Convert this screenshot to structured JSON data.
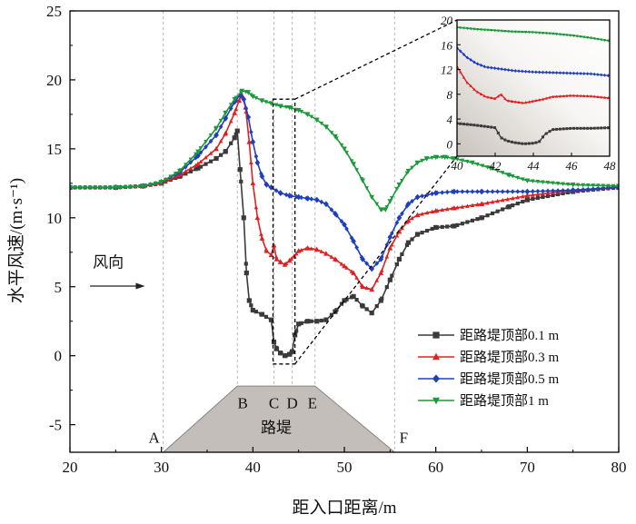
{
  "chart_data": {
    "type": "line",
    "xlabel": "距入口距离/m",
    "ylabel": "水平风速/(m·s⁻¹)",
    "xlim": [
      20,
      80
    ],
    "ylim": [
      -7,
      25
    ],
    "xticks": [
      "20",
      "30",
      "40",
      "50",
      "60",
      "70",
      "80"
    ],
    "yticks": [
      "-5",
      "0",
      "5",
      "10",
      "15",
      "20",
      "25"
    ],
    "grid": false,
    "legend_position": "bottom-right",
    "wind_direction_label": "风向",
    "embankment_label": "路堤",
    "reference_lines": [
      {
        "label": "A",
        "x": 30.2
      },
      {
        "label": "B",
        "x": 38.3
      },
      {
        "label": "C",
        "x": 42.3
      },
      {
        "label": "D",
        "x": 44.3
      },
      {
        "label": "E",
        "x": 46.8
      },
      {
        "label": "F",
        "x": 55.5
      }
    ],
    "series": [
      {
        "name": "距路堤顶部0.1 m",
        "color": "#3a3a3a",
        "marker": "square",
        "points": [
          [
            20,
            12.2
          ],
          [
            25,
            12.2
          ],
          [
            28,
            12.3
          ],
          [
            30,
            12.5
          ],
          [
            32,
            13.0
          ],
          [
            34,
            13.6
          ],
          [
            36,
            14.3
          ],
          [
            37,
            14.8
          ],
          [
            38,
            15.8
          ],
          [
            38.3,
            16.3
          ],
          [
            38.6,
            13.5
          ],
          [
            39,
            10.0
          ],
          [
            39.3,
            6.0
          ],
          [
            39.6,
            4.0
          ],
          [
            40,
            3.3
          ],
          [
            41,
            3.0
          ],
          [
            42,
            2.6
          ],
          [
            42.3,
            1.0
          ],
          [
            42.6,
            0.5
          ],
          [
            43,
            0.2
          ],
          [
            43.5,
            0.0
          ],
          [
            44,
            0.1
          ],
          [
            44.3,
            0.3
          ],
          [
            44.6,
            1.5
          ],
          [
            45,
            2.3
          ],
          [
            46,
            2.5
          ],
          [
            47,
            2.5
          ],
          [
            48,
            2.6
          ],
          [
            49,
            3.2
          ],
          [
            50,
            4.0
          ],
          [
            51,
            4.3
          ],
          [
            52,
            3.6
          ],
          [
            53,
            3.1
          ],
          [
            54,
            4.0
          ],
          [
            55,
            5.5
          ],
          [
            56,
            7.0
          ],
          [
            57,
            8.2
          ],
          [
            58,
            8.8
          ],
          [
            60,
            9.3
          ],
          [
            62,
            9.4
          ],
          [
            65,
            10.0
          ],
          [
            68,
            10.8
          ],
          [
            70,
            11.3
          ],
          [
            75,
            11.9
          ],
          [
            80,
            12.2
          ]
        ]
      },
      {
        "name": "距路堤顶部0.3 m",
        "color": "#e02020",
        "marker": "triangle",
        "points": [
          [
            20,
            12.2
          ],
          [
            25,
            12.2
          ],
          [
            28,
            12.3
          ],
          [
            30,
            12.5
          ],
          [
            32,
            13.1
          ],
          [
            34,
            13.9
          ],
          [
            36,
            15.0
          ],
          [
            37,
            16.1
          ],
          [
            38,
            17.6
          ],
          [
            38.5,
            18.5
          ],
          [
            38.8,
            18.9
          ],
          [
            39.2,
            18.0
          ],
          [
            39.6,
            15.5
          ],
          [
            40,
            12.5
          ],
          [
            40.5,
            10.0
          ],
          [
            41,
            8.5
          ],
          [
            41.5,
            7.6
          ],
          [
            42,
            7.3
          ],
          [
            42.3,
            8.0
          ],
          [
            42.6,
            7.0
          ],
          [
            43,
            6.8
          ],
          [
            43.5,
            6.6
          ],
          [
            44,
            6.9
          ],
          [
            44.5,
            7.2
          ],
          [
            45,
            7.6
          ],
          [
            46,
            7.8
          ],
          [
            47,
            7.7
          ],
          [
            48,
            7.4
          ],
          [
            49,
            7.0
          ],
          [
            50,
            6.5
          ],
          [
            51,
            6.0
          ],
          [
            52,
            5.0
          ],
          [
            53,
            4.8
          ],
          [
            54,
            6.0
          ],
          [
            55,
            7.8
          ],
          [
            56,
            9.0
          ],
          [
            57,
            9.8
          ],
          [
            58,
            10.2
          ],
          [
            60,
            10.5
          ],
          [
            62,
            10.7
          ],
          [
            65,
            11.0
          ],
          [
            70,
            11.6
          ],
          [
            75,
            12.0
          ],
          [
            80,
            12.2
          ]
        ]
      },
      {
        "name": "距路堤顶部0.5 m",
        "color": "#1f3fbf",
        "marker": "diamond",
        "points": [
          [
            20,
            12.2
          ],
          [
            25,
            12.2
          ],
          [
            28,
            12.3
          ],
          [
            30,
            12.6
          ],
          [
            32,
            13.3
          ],
          [
            34,
            14.5
          ],
          [
            36,
            16.0
          ],
          [
            37,
            17.2
          ],
          [
            38,
            18.4
          ],
          [
            38.6,
            18.9
          ],
          [
            39,
            18.6
          ],
          [
            39.5,
            17.3
          ],
          [
            40,
            15.5
          ],
          [
            40.5,
            14.0
          ],
          [
            41,
            13.0
          ],
          [
            41.5,
            12.4
          ],
          [
            42,
            12.2
          ],
          [
            43,
            11.8
          ],
          [
            44,
            11.6
          ],
          [
            45,
            11.5
          ],
          [
            46,
            11.4
          ],
          [
            47,
            11.3
          ],
          [
            48,
            11.0
          ],
          [
            49,
            10.3
          ],
          [
            50,
            9.5
          ],
          [
            51,
            8.3
          ],
          [
            52,
            7.0
          ],
          [
            53,
            6.3
          ],
          [
            54,
            7.0
          ],
          [
            55,
            8.6
          ],
          [
            56,
            10.0
          ],
          [
            57,
            11.0
          ],
          [
            58,
            11.5
          ],
          [
            60,
            11.8
          ],
          [
            62,
            11.9
          ],
          [
            65,
            11.9
          ],
          [
            70,
            11.9
          ],
          [
            75,
            12.0
          ],
          [
            80,
            12.2
          ]
        ]
      },
      {
        "name": "距路堤顶部1 m",
        "color": "#1a9a3a",
        "marker": "triangle-down",
        "points": [
          [
            20,
            12.2
          ],
          [
            25,
            12.2
          ],
          [
            28,
            12.3
          ],
          [
            30,
            12.6
          ],
          [
            32,
            13.4
          ],
          [
            34,
            14.8
          ],
          [
            36,
            16.5
          ],
          [
            37,
            17.6
          ],
          [
            38,
            18.6
          ],
          [
            38.8,
            19.2
          ],
          [
            39.5,
            19.1
          ],
          [
            40,
            18.8
          ],
          [
            41,
            18.5
          ],
          [
            42,
            18.3
          ],
          [
            43,
            18.1
          ],
          [
            44,
            18.0
          ],
          [
            45,
            17.8
          ],
          [
            46,
            17.5
          ],
          [
            47,
            17.1
          ],
          [
            48,
            16.6
          ],
          [
            49,
            15.9
          ],
          [
            50,
            15.0
          ],
          [
            51,
            13.9
          ],
          [
            52,
            12.7
          ],
          [
            53,
            11.5
          ],
          [
            54,
            10.6
          ],
          [
            54.5,
            10.6
          ],
          [
            55,
            11.2
          ],
          [
            56,
            12.4
          ],
          [
            57,
            13.4
          ],
          [
            58,
            14.0
          ],
          [
            59,
            14.3
          ],
          [
            60,
            14.4
          ],
          [
            61,
            14.4
          ],
          [
            62,
            14.3
          ],
          [
            64,
            14.0
          ],
          [
            66,
            13.6
          ],
          [
            68,
            13.1
          ],
          [
            70,
            12.7
          ],
          [
            75,
            12.4
          ],
          [
            80,
            12.3
          ]
        ]
      }
    ],
    "inset": {
      "xlim": [
        40,
        48
      ],
      "ylim": [
        -2,
        20
      ],
      "xticks": [
        "40",
        "42",
        "44",
        "46",
        "48"
      ],
      "yticks": [
        "0",
        "4",
        "8",
        "12",
        "16",
        "20"
      ],
      "main_window_x": [
        42.2,
        44.6
      ],
      "main_window_y": [
        -0.6,
        18.6
      ]
    }
  }
}
